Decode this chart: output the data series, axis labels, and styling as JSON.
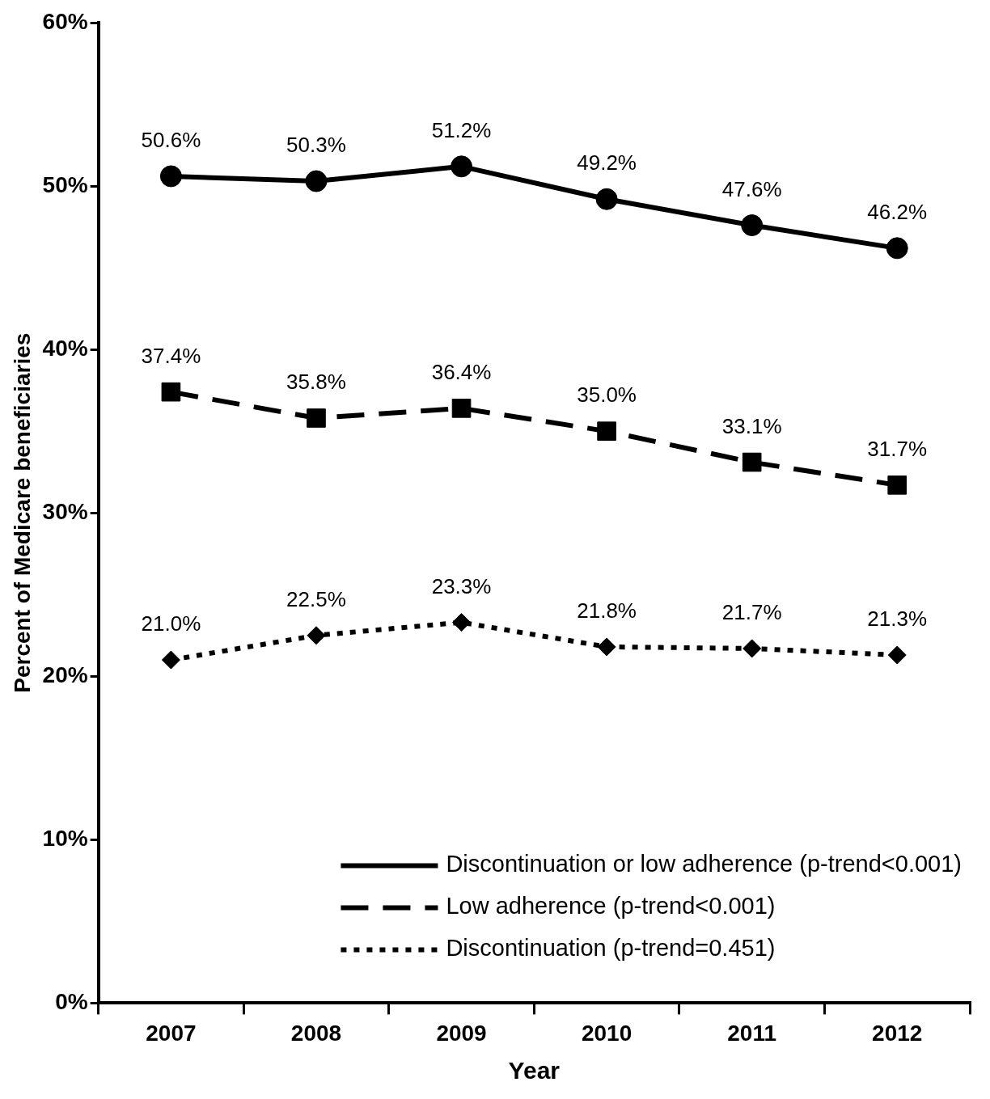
{
  "chart_data": {
    "type": "line",
    "xlabel": "Year",
    "ylabel": "Percent of Medicare beneficiaries",
    "categories": [
      "2007",
      "2008",
      "2009",
      "2010",
      "2011",
      "2012"
    ],
    "series": [
      {
        "name": "Discontinuation or low adherence (p-trend<0.001)",
        "color": "#000000",
        "values": [
          50.6,
          50.3,
          51.2,
          49.2,
          47.6,
          46.2
        ],
        "value_labels": [
          "50.6%",
          "50.3%",
          "51.2%",
          "49.2%",
          "47.6%",
          "46.2%"
        ],
        "marker": "circle",
        "line_style": "solid"
      },
      {
        "name": "Low adherence (p-trend<0.001)",
        "color": "#000000",
        "values": [
          37.4,
          35.8,
          36.4,
          35.0,
          33.1,
          31.7
        ],
        "value_labels": [
          "37.4%",
          "35.8%",
          "36.4%",
          "35.0%",
          "33.1%",
          "31.7%"
        ],
        "marker": "square",
        "line_style": "dashed"
      },
      {
        "name": "Discontinuation (p-trend=0.451)",
        "color": "#000000",
        "values": [
          21.0,
          22.5,
          23.3,
          21.8,
          21.7,
          21.3
        ],
        "value_labels": [
          "21.0%",
          "22.5%",
          "23.3%",
          "21.8%",
          "21.7%",
          "21.3%"
        ],
        "marker": "diamond",
        "line_style": "dotted"
      }
    ],
    "ylim": [
      0,
      60
    ],
    "yticks": [
      {
        "value": 0,
        "label": "0%"
      },
      {
        "value": 10,
        "label": "10%"
      },
      {
        "value": 20,
        "label": "20%"
      },
      {
        "value": 30,
        "label": "30%"
      },
      {
        "value": 40,
        "label": "40%"
      },
      {
        "value": 50,
        "label": "50%"
      },
      {
        "value": 60,
        "label": "60%"
      }
    ],
    "grid": false,
    "legend": "bottom right"
  }
}
